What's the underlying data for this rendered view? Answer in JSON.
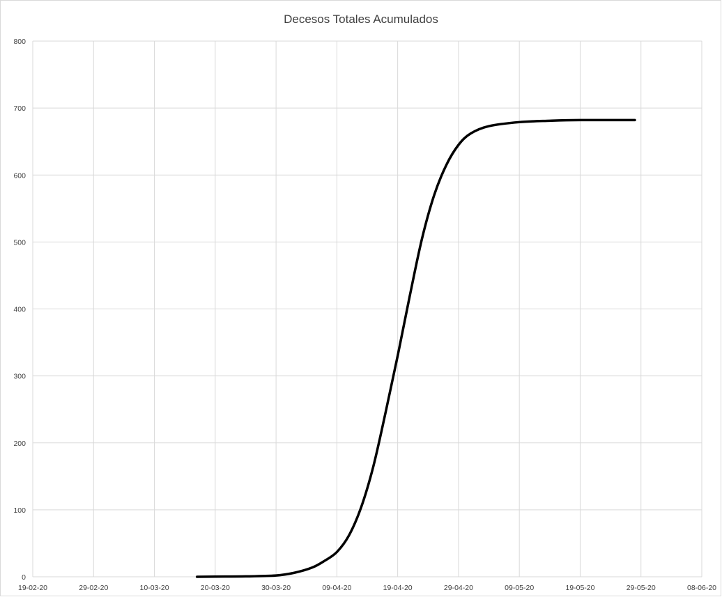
{
  "chart_data": {
    "type": "line",
    "title": "Decesos Totales Acumulados",
    "xlabel": "",
    "ylabel": "",
    "x_tick_labels": [
      "19-02-20",
      "29-02-20",
      "10-03-20",
      "20-03-20",
      "30-03-20",
      "09-04-20",
      "19-04-20",
      "29-04-20",
      "09-05-20",
      "19-05-20",
      "29-05-20",
      "08-06-20"
    ],
    "x_ticks": [
      "2020-02-19",
      "2020-02-29",
      "2020-03-10",
      "2020-03-20",
      "2020-03-30",
      "2020-04-09",
      "2020-04-19",
      "2020-04-29",
      "2020-05-09",
      "2020-05-19",
      "2020-05-29",
      "2020-06-08"
    ],
    "xlim": [
      "2020-02-19",
      "2020-06-08"
    ],
    "ylim": [
      0,
      800
    ],
    "y_ticks": [
      0,
      100,
      200,
      300,
      400,
      500,
      600,
      700,
      800
    ],
    "grid": true,
    "legend": "none",
    "series": [
      {
        "color": "#000000",
        "points": [
          {
            "x": "2020-03-17",
            "y": 0
          },
          {
            "x": "2020-03-20",
            "y": 0.3
          },
          {
            "x": "2020-03-25",
            "y": 0.6
          },
          {
            "x": "2020-03-30",
            "y": 2
          },
          {
            "x": "2020-04-02",
            "y": 6
          },
          {
            "x": "2020-04-05",
            "y": 14
          },
          {
            "x": "2020-04-07",
            "y": 24
          },
          {
            "x": "2020-04-09",
            "y": 37
          },
          {
            "x": "2020-04-11",
            "y": 62
          },
          {
            "x": "2020-04-13",
            "y": 104
          },
          {
            "x": "2020-04-15",
            "y": 165
          },
          {
            "x": "2020-04-17",
            "y": 245
          },
          {
            "x": "2020-04-19",
            "y": 330
          },
          {
            "x": "2020-04-21",
            "y": 420
          },
          {
            "x": "2020-04-23",
            "y": 505
          },
          {
            "x": "2020-04-25",
            "y": 570
          },
          {
            "x": "2020-04-27",
            "y": 615
          },
          {
            "x": "2020-04-29",
            "y": 645
          },
          {
            "x": "2020-05-01",
            "y": 662
          },
          {
            "x": "2020-05-04",
            "y": 673
          },
          {
            "x": "2020-05-09",
            "y": 679
          },
          {
            "x": "2020-05-14",
            "y": 681
          },
          {
            "x": "2020-05-19",
            "y": 682
          },
          {
            "x": "2020-05-28",
            "y": 682
          }
        ]
      }
    ]
  }
}
